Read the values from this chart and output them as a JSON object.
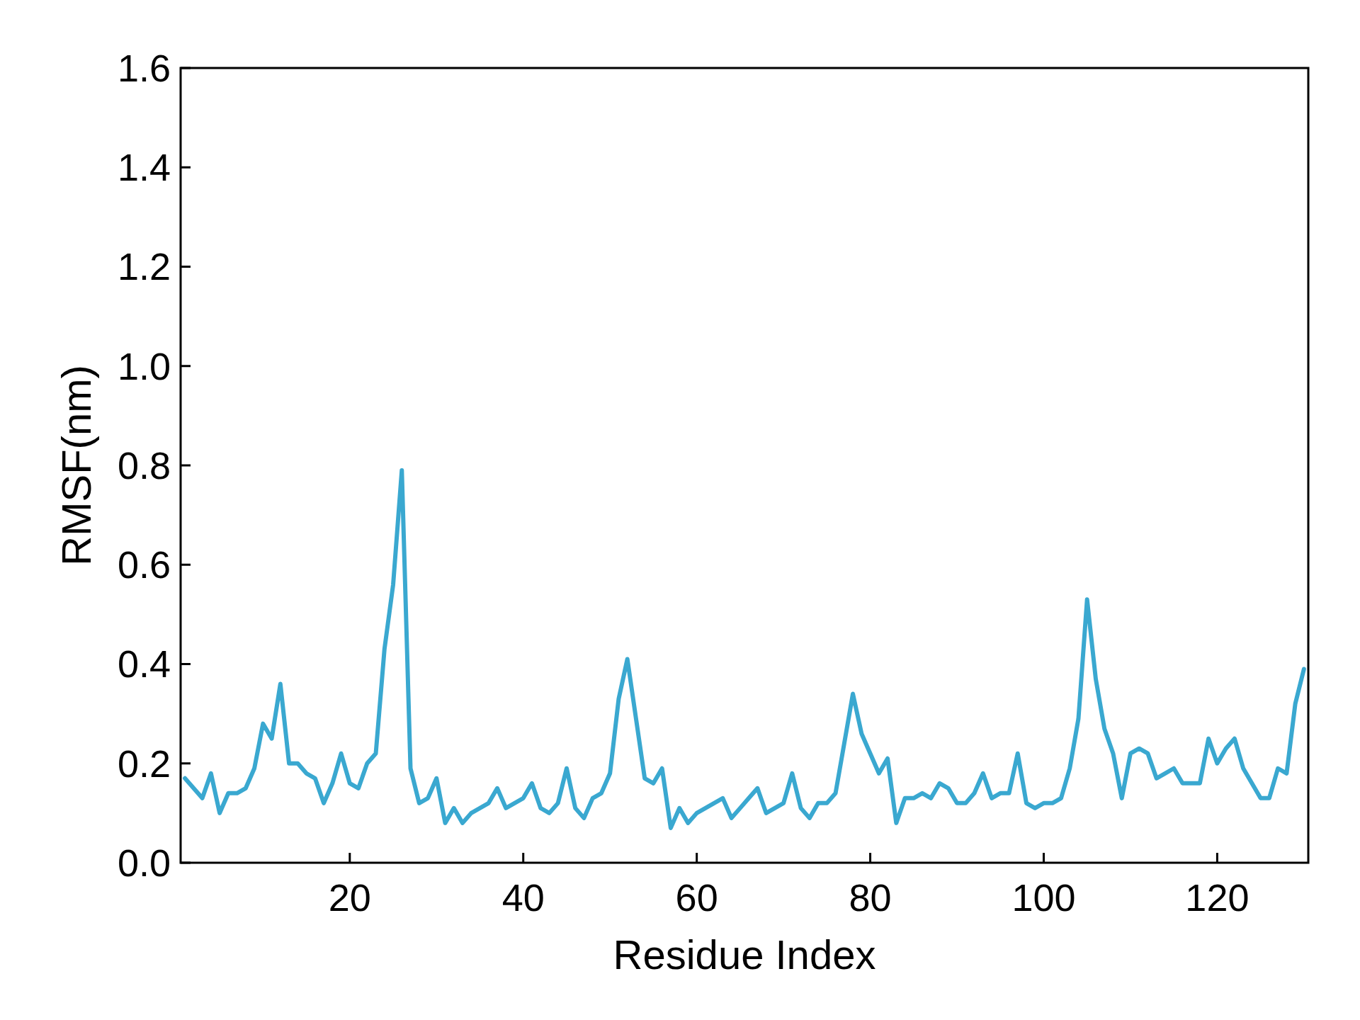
{
  "chart_data": {
    "type": "line",
    "xlabel": "Residue Index",
    "ylabel": "RMSF(nm)",
    "xlim": [
      0.5,
      130.5
    ],
    "xticks": [
      20,
      40,
      60,
      80,
      100,
      120
    ],
    "ylim": [
      0,
      1.6
    ],
    "yticks": [
      {
        "value": 0,
        "label": "0.0"
      },
      0.2,
      0.4,
      0.6,
      0.8,
      {
        "value": 1,
        "label": "1.0"
      },
      1.2,
      1.4,
      1.6
    ],
    "line_style": "solid",
    "x": [
      1,
      2,
      3,
      4,
      5,
      6,
      7,
      8,
      9,
      10,
      11,
      12,
      13,
      14,
      15,
      16,
      17,
      18,
      19,
      20,
      21,
      22,
      23,
      24,
      25,
      26,
      27,
      28,
      29,
      30,
      31,
      32,
      33,
      34,
      35,
      36,
      37,
      38,
      39,
      40,
      41,
      42,
      43,
      44,
      45,
      46,
      47,
      48,
      49,
      50,
      51,
      52,
      53,
      54,
      55,
      56,
      57,
      58,
      59,
      60,
      61,
      62,
      63,
      64,
      65,
      66,
      67,
      68,
      69,
      70,
      71,
      72,
      73,
      74,
      75,
      76,
      77,
      78,
      79,
      80,
      81,
      82,
      83,
      84,
      85,
      86,
      87,
      88,
      89,
      90,
      91,
      92,
      93,
      94,
      95,
      96,
      97,
      98,
      99,
      100,
      101,
      102,
      103,
      104,
      105,
      106,
      107,
      108,
      109,
      110,
      111,
      112,
      113,
      114,
      115,
      116,
      117,
      118,
      119,
      120,
      121,
      122,
      123,
      124,
      125,
      126,
      127,
      128,
      129,
      130
    ],
    "series": [
      {
        "color": "#3aa8d0",
        "values": [
          0.17,
          0.15,
          0.13,
          0.18,
          0.1,
          0.14,
          0.14,
          0.15,
          0.19,
          0.28,
          0.25,
          0.36,
          0.2,
          0.2,
          0.18,
          0.17,
          0.12,
          0.16,
          0.22,
          0.16,
          0.15,
          0.2,
          0.22,
          0.43,
          0.56,
          0.79,
          0.19,
          0.12,
          0.13,
          0.17,
          0.08,
          0.11,
          0.08,
          0.1,
          0.11,
          0.12,
          0.15,
          0.11,
          0.12,
          0.13,
          0.16,
          0.11,
          0.1,
          0.12,
          0.19,
          0.11,
          0.09,
          0.13,
          0.14,
          0.18,
          0.33,
          0.41,
          0.29,
          0.17,
          0.16,
          0.19,
          0.07,
          0.11,
          0.08,
          0.1,
          0.11,
          0.12,
          0.13,
          0.09,
          0.11,
          0.13,
          0.15,
          0.1,
          0.11,
          0.12,
          0.18,
          0.11,
          0.09,
          0.12,
          0.12,
          0.14,
          0.24,
          0.34,
          0.26,
          0.22,
          0.18,
          0.21,
          0.08,
          0.13,
          0.13,
          0.14,
          0.13,
          0.16,
          0.15,
          0.12,
          0.12,
          0.14,
          0.18,
          0.13,
          0.14,
          0.14,
          0.22,
          0.12,
          0.11,
          0.12,
          0.12,
          0.13,
          0.19,
          0.29,
          0.53,
          0.37,
          0.27,
          0.22,
          0.13,
          0.22,
          0.23,
          0.22,
          0.17,
          0.18,
          0.19,
          0.16,
          0.16,
          0.16,
          0.25,
          0.2,
          0.23,
          0.25,
          0.19,
          0.16,
          0.13,
          0.13,
          0.19,
          0.18,
          0.32,
          0.39
        ]
      }
    ]
  }
}
